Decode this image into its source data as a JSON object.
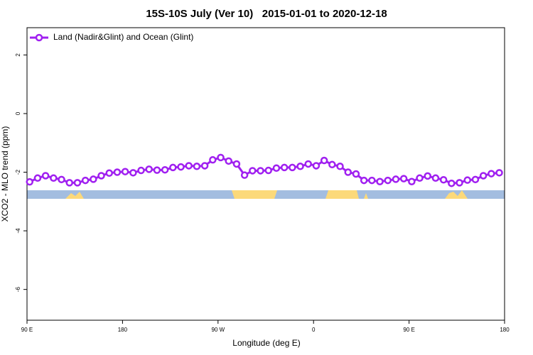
{
  "chart_data": {
    "type": "line",
    "title": "15S-10S July (Ver 10)   2015-01-01 to 2020-12-18",
    "xlabel": "Longitude (deg E)",
    "ylabel": "XCO2 - MLO trend (ppm)",
    "xlim": [
      90,
      540
    ],
    "ylim": [
      -7.05,
      2.93
    ],
    "xticks": [
      {
        "value": 90,
        "label": "90 E"
      },
      180,
      {
        "value": 270,
        "label": "90 W"
      },
      {
        "value": 360,
        "label": "0"
      },
      {
        "value": 450,
        "label": "90 E"
      },
      {
        "value": 540,
        "label": "180"
      }
    ],
    "yticks": [
      -6,
      -4,
      -2,
      0,
      2
    ],
    "legend": "top-left",
    "series": [
      {
        "name": "Land (Nadir&Glint) and Ocean (Glint)",
        "color": "#a020f0",
        "x": [
          92.5,
          100,
          107.5,
          115,
          122.5,
          130,
          137.5,
          145,
          152.5,
          160,
          167.5,
          175,
          182.5,
          190,
          197.5,
          205,
          212.5,
          220,
          227.5,
          235,
          242.5,
          250,
          257.5,
          265,
          272.5,
          280,
          287.5,
          295,
          302.5,
          310,
          317.5,
          325,
          332.5,
          340,
          347.5,
          355,
          362.5,
          370,
          377.5,
          385,
          392.5,
          400,
          407.5,
          415,
          422.5,
          430,
          437.5,
          445,
          452.5,
          460,
          467.5,
          475,
          482.5,
          490,
          497.5,
          505,
          512.5,
          520,
          527.5,
          535
        ],
        "values": [
          -2.33,
          -2.2,
          -2.12,
          -2.2,
          -2.25,
          -2.36,
          -2.36,
          -2.28,
          -2.24,
          -2.12,
          -2.03,
          -2.0,
          -1.98,
          -2.02,
          -1.94,
          -1.9,
          -1.93,
          -1.92,
          -1.84,
          -1.82,
          -1.78,
          -1.8,
          -1.78,
          -1.58,
          -1.5,
          -1.62,
          -1.72,
          -2.1,
          -1.95,
          -1.95,
          -1.94,
          -1.86,
          -1.84,
          -1.84,
          -1.8,
          -1.72,
          -1.78,
          -1.6,
          -1.74,
          -1.8,
          -2.0,
          -2.06,
          -2.28,
          -2.28,
          -2.32,
          -2.28,
          -2.24,
          -2.22,
          -2.32,
          -2.2,
          -2.13,
          -2.2,
          -2.26,
          -2.38,
          -2.36,
          -2.27,
          -2.25,
          -2.12,
          -2.05,
          -2.02
        ]
      }
    ]
  }
}
